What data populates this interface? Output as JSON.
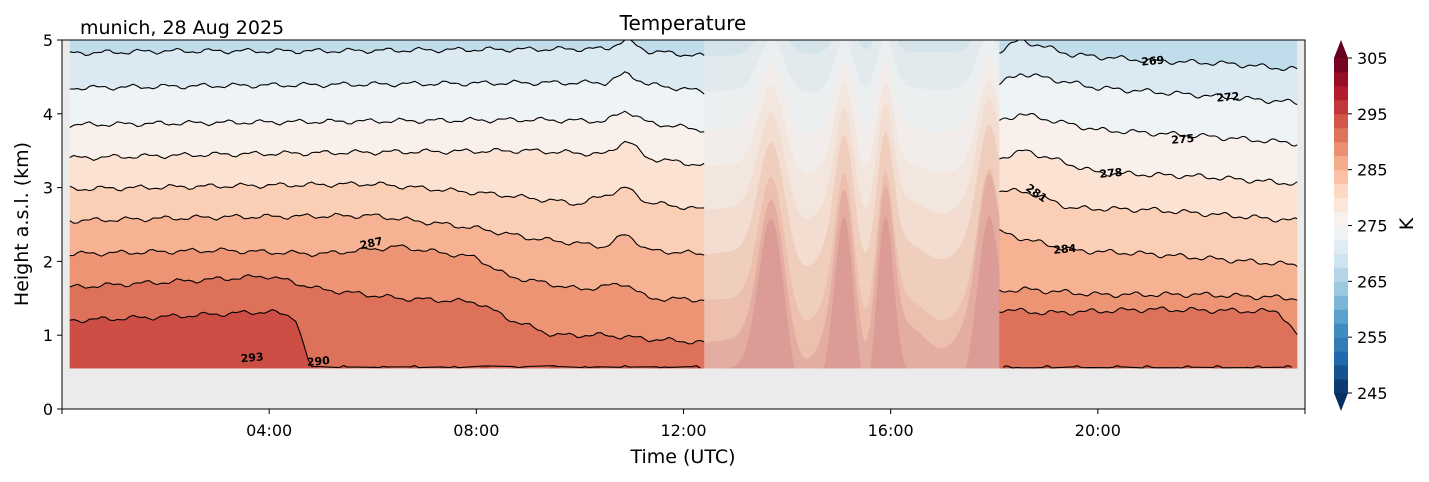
{
  "chart_data": {
    "type": "heatmap",
    "subtype": "filled-contour",
    "title": "Temperature",
    "location_label": "munich, 28 Aug 2025",
    "xlabel": "Time (UTC)",
    "ylabel": "Height a.s.l. (km)",
    "xlim_hours": [
      0,
      24
    ],
    "ylim": [
      0,
      5
    ],
    "xticks": [
      {
        "value": 4,
        "label": "04:00"
      },
      {
        "value": 8,
        "label": "08:00"
      },
      {
        "value": 12,
        "label": "12:00"
      },
      {
        "value": 16,
        "label": "16:00"
      },
      {
        "value": 20,
        "label": "20:00"
      }
    ],
    "yticks": [
      {
        "value": 0,
        "label": "0"
      },
      {
        "value": 1,
        "label": "1"
      },
      {
        "value": 2,
        "label": "2"
      },
      {
        "value": 3,
        "label": "3"
      },
      {
        "value": 4,
        "label": "4"
      },
      {
        "value": 5,
        "label": "5"
      }
    ],
    "data_bottom_km": 0.55,
    "masked_period_hours": [
      12.4,
      18.1
    ],
    "colorbar": {
      "label": "K",
      "min": 245,
      "max": 305,
      "step": 2.5,
      "extend": "both",
      "cmap": "RdBu_r",
      "ticks": [
        {
          "value": 245,
          "label": "245"
        },
        {
          "value": 255,
          "label": "255"
        },
        {
          "value": 265,
          "label": "265"
        },
        {
          "value": 275,
          "label": "275"
        },
        {
          "value": 285,
          "label": "285"
        },
        {
          "value": 295,
          "label": "295"
        },
        {
          "value": 305,
          "label": "305"
        }
      ]
    },
    "contours": [
      {
        "level": 269,
        "left": [
          [
            0.15,
            4.82
          ],
          [
            2,
            4.85
          ],
          [
            5,
            4.85
          ],
          [
            8,
            4.87
          ],
          [
            10.5,
            4.88
          ],
          [
            10.9,
            5.0
          ],
          [
            11.3,
            4.85
          ],
          [
            12.4,
            4.78
          ]
        ],
        "right": [
          [
            18.1,
            4.85
          ],
          [
            18.5,
            5.0
          ],
          [
            19.5,
            4.8
          ],
          [
            21,
            4.72
          ],
          [
            22.5,
            4.68
          ],
          [
            23.85,
            4.6
          ]
        ]
      },
      {
        "level": 272,
        "left": [
          [
            0.15,
            4.35
          ],
          [
            3,
            4.38
          ],
          [
            6,
            4.4
          ],
          [
            9,
            4.42
          ],
          [
            10.5,
            4.42
          ],
          [
            10.9,
            4.55
          ],
          [
            11.3,
            4.4
          ],
          [
            12.4,
            4.3
          ]
        ],
        "right": [
          [
            18.1,
            4.4
          ],
          [
            18.5,
            4.55
          ],
          [
            20,
            4.35
          ],
          [
            22,
            4.25
          ],
          [
            23.85,
            4.15
          ]
        ]
      },
      {
        "level": 275,
        "left": [
          [
            0.15,
            3.85
          ],
          [
            3,
            3.88
          ],
          [
            6,
            3.9
          ],
          [
            9,
            3.92
          ],
          [
            10.5,
            3.9
          ],
          [
            10.9,
            4.05
          ],
          [
            11.3,
            3.88
          ],
          [
            12.4,
            3.78
          ]
        ],
        "right": [
          [
            18.1,
            3.9
          ],
          [
            18.5,
            4.0
          ],
          [
            20,
            3.78
          ],
          [
            22,
            3.7
          ],
          [
            23.85,
            3.6
          ]
        ]
      },
      {
        "level": 278,
        "left": [
          [
            0.15,
            3.4
          ],
          [
            3,
            3.45
          ],
          [
            6,
            3.48
          ],
          [
            9,
            3.5
          ],
          [
            10.5,
            3.45
          ],
          [
            10.9,
            3.65
          ],
          [
            11.3,
            3.4
          ],
          [
            12.4,
            3.3
          ]
        ],
        "right": [
          [
            18.1,
            3.4
          ],
          [
            18.6,
            3.5
          ],
          [
            20,
            3.2
          ],
          [
            22,
            3.15
          ],
          [
            23.85,
            3.05
          ]
        ]
      },
      {
        "level": 281,
        "left": [
          [
            0.15,
            2.98
          ],
          [
            3,
            3.02
          ],
          [
            6,
            3.05
          ],
          [
            8.5,
            2.9
          ],
          [
            10,
            2.78
          ],
          [
            10.9,
            3.0
          ],
          [
            11.3,
            2.8
          ],
          [
            12.4,
            2.7
          ]
        ],
        "right": [
          [
            18.1,
            2.95
          ],
          [
            18.6,
            2.95
          ],
          [
            19.5,
            2.72
          ],
          [
            21,
            2.7
          ],
          [
            22,
            2.65
          ],
          [
            23.85,
            2.55
          ]
        ]
      },
      {
        "level": 284,
        "left": [
          [
            0.15,
            2.55
          ],
          [
            3,
            2.6
          ],
          [
            6,
            2.62
          ],
          [
            8,
            2.45
          ],
          [
            9,
            2.32
          ],
          [
            10.5,
            2.2
          ],
          [
            10.9,
            2.38
          ],
          [
            11.3,
            2.15
          ],
          [
            12.4,
            2.1
          ]
        ],
        "right": [
          [
            18.1,
            2.4
          ],
          [
            18.6,
            2.3
          ],
          [
            19.5,
            2.15
          ],
          [
            21,
            2.1
          ],
          [
            23.85,
            1.95
          ]
        ]
      },
      {
        "level": 287,
        "left": [
          [
            0.15,
            2.1
          ],
          [
            3,
            2.15
          ],
          [
            5,
            2.1
          ],
          [
            6.5,
            2.2
          ],
          [
            8,
            2.05
          ],
          [
            8.6,
            1.8
          ],
          [
            10,
            1.62
          ],
          [
            10.9,
            1.7
          ],
          [
            11.3,
            1.5
          ],
          [
            12.4,
            1.48
          ]
        ],
        "right": [
          [
            18.1,
            1.6
          ],
          [
            18.6,
            1.62
          ],
          [
            20,
            1.55
          ],
          [
            22,
            1.55
          ],
          [
            23.85,
            1.5
          ]
        ]
      },
      {
        "level": 290,
        "left": [
          [
            0.15,
            1.65
          ],
          [
            2,
            1.72
          ],
          [
            4,
            1.8
          ],
          [
            5,
            1.62
          ],
          [
            6.5,
            1.5
          ],
          [
            8,
            1.45
          ],
          [
            8.7,
            1.2
          ],
          [
            9.5,
            1.0
          ],
          [
            10.5,
            1.0
          ],
          [
            11.3,
            0.95
          ],
          [
            12.4,
            0.9
          ]
        ],
        "right": [
          [
            18.1,
            1.35
          ],
          [
            19,
            1.3
          ],
          [
            21,
            1.35
          ],
          [
            23.5,
            1.32
          ],
          [
            23.85,
            1.0
          ]
        ]
      },
      {
        "level": 293,
        "left": [
          [
            0.15,
            1.2
          ],
          [
            2,
            1.25
          ],
          [
            4,
            1.32
          ],
          [
            4.5,
            1.25
          ],
          [
            4.8,
            0.55
          ],
          [
            12.4,
            0.55
          ]
        ],
        "right": [
          [
            18.1,
            0.55
          ],
          [
            23.85,
            0.55
          ]
        ]
      }
    ],
    "contour_labels": [
      {
        "text": "269",
        "t": 21.06,
        "h": 4.72
      },
      {
        "text": "272",
        "t": 22.51,
        "h": 4.23
      },
      {
        "text": "275",
        "t": 21.64,
        "h": 3.66
      },
      {
        "text": "278",
        "t": 20.25,
        "h": 3.2
      },
      {
        "text": "281",
        "t": 18.82,
        "h": 2.93
      },
      {
        "text": "284",
        "t": 19.36,
        "h": 2.17
      },
      {
        "text": "287",
        "t": 5.97,
        "h": 2.25
      },
      {
        "text": "290",
        "t": 4.95,
        "h": 0.65
      },
      {
        "text": "293",
        "t": 3.67,
        "h": 0.7
      }
    ]
  }
}
